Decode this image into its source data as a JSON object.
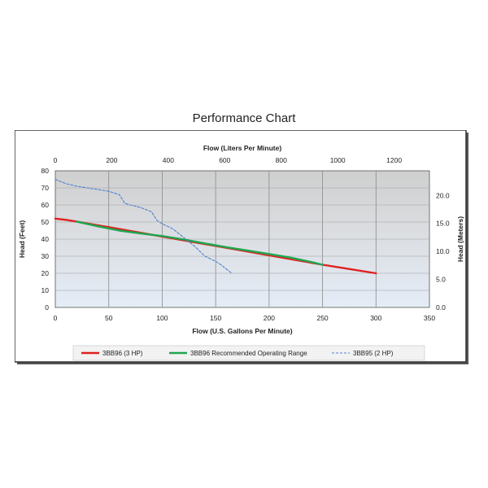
{
  "chart_data": {
    "type": "line",
    "title": "Performance Chart",
    "xlabel": "Flow (U.S. Gallons Per Minute)",
    "ylabel": "Head (Feet)",
    "x2label": "Flow (Liters Per Minute)",
    "y2label": "Head (Meters)",
    "xlim": [
      0,
      350
    ],
    "ylim": [
      0,
      80
    ],
    "x2lim": [
      0,
      1325
    ],
    "y2lim": [
      0,
      24.4
    ],
    "xticks": [
      "0",
      "50",
      "100",
      "150",
      "200",
      "250",
      "300",
      "350"
    ],
    "yticks": [
      "0",
      "10",
      "20",
      "30",
      "40",
      "50",
      "60",
      "70",
      "80"
    ],
    "x2ticks": [
      "0",
      "200",
      "400",
      "600",
      "800",
      "1000",
      "1200"
    ],
    "y2ticks": [
      "0.0",
      "5.0",
      "10.0",
      "15.0",
      "20.0"
    ],
    "grid": true,
    "legend_position": "bottom",
    "series": [
      {
        "name": "3BB96 (3 HP)",
        "color": "#e02020",
        "style": "solid",
        "x": [
          0,
          10,
          20,
          250,
          270,
          300
        ],
        "y": [
          52,
          51.3,
          50.3,
          25,
          23,
          20
        ]
      },
      {
        "name": "3BB96 Recommended Operating Range",
        "color": "#1fa650",
        "style": "solid",
        "x": [
          20,
          40,
          60,
          80,
          100,
          120,
          140,
          160,
          180,
          200,
          220,
          240,
          250
        ],
        "y": [
          50.3,
          47.5,
          45,
          43.3,
          41.8,
          39.8,
          37.5,
          35.3,
          33.3,
          31.3,
          29.2,
          26.5,
          25
        ]
      },
      {
        "name": "3BB95 (2 HP)",
        "color": "#4f81d0",
        "style": "dashed",
        "x": [
          0,
          10,
          20,
          30,
          40,
          50,
          55,
          60,
          62,
          65,
          70,
          80,
          90,
          95,
          100,
          110,
          120,
          130,
          140,
          150,
          155,
          160,
          165
        ],
        "y": [
          75,
          72.5,
          71,
          70,
          69,
          68,
          67,
          66,
          64,
          61,
          60,
          58.5,
          56,
          51,
          49,
          46,
          41,
          36,
          30,
          27,
          25,
          22.5,
          20
        ]
      }
    ]
  }
}
